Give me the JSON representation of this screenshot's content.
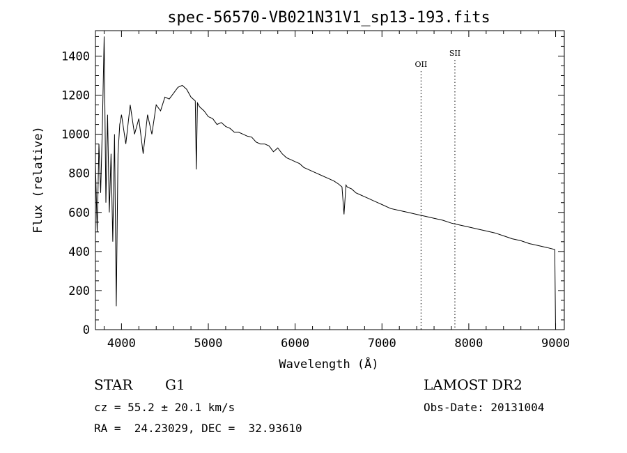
{
  "chart_data": {
    "type": "line",
    "title": "spec-56570-VB021N31V1_sp13-193.fits",
    "xlabel": "Wavelength (Å)",
    "ylabel": "Flux (relative)",
    "xlim": [
      3700,
      9100
    ],
    "ylim": [
      0,
      1530
    ],
    "x_ticks": [
      4000,
      5000,
      6000,
      7000,
      8000,
      9000
    ],
    "y_ticks": [
      0,
      200,
      400,
      600,
      800,
      1000,
      1200,
      1400
    ],
    "grid": false,
    "series": [
      {
        "x": [
          3700,
          3720,
          3740,
          3760,
          3780,
          3800,
          3820,
          3840,
          3860,
          3880,
          3900,
          3920,
          3940,
          3960,
          3980,
          4000,
          4050,
          4100,
          4150,
          4200,
          4250,
          4300,
          4350,
          4400,
          4450,
          4500,
          4550,
          4600,
          4650,
          4700,
          4750,
          4800,
          4850,
          4862,
          4875,
          4900,
          4950,
          5000,
          5050,
          5100,
          5150,
          5200,
          5250,
          5300,
          5350,
          5400,
          5450,
          5500,
          5550,
          5600,
          5650,
          5700,
          5750,
          5800,
          5850,
          5900,
          5950,
          6000,
          6050,
          6100,
          6150,
          6200,
          6250,
          6300,
          6350,
          6400,
          6450,
          6500,
          6540,
          6563,
          6585,
          6600,
          6650,
          6700,
          6750,
          6800,
          6850,
          6900,
          6950,
          7000,
          7100,
          7200,
          7300,
          7400,
          7500,
          7600,
          7700,
          7800,
          7900,
          8000,
          8100,
          8200,
          8300,
          8400,
          8500,
          8600,
          8700,
          8800,
          8900,
          8990,
          9000
        ],
        "y": [
          850,
          500,
          950,
          700,
          1050,
          1500,
          650,
          1100,
          600,
          900,
          450,
          1000,
          120,
          900,
          1050,
          1100,
          950,
          1150,
          1000,
          1080,
          900,
          1100,
          1000,
          1150,
          1120,
          1190,
          1180,
          1210,
          1240,
          1250,
          1230,
          1190,
          1170,
          820,
          1160,
          1140,
          1120,
          1090,
          1080,
          1050,
          1060,
          1040,
          1030,
          1010,
          1010,
          1000,
          990,
          985,
          960,
          950,
          950,
          940,
          910,
          930,
          900,
          880,
          870,
          860,
          850,
          830,
          820,
          810,
          800,
          790,
          780,
          770,
          760,
          745,
          730,
          590,
          740,
          730,
          720,
          700,
          690,
          680,
          670,
          660,
          650,
          640,
          620,
          610,
          600,
          590,
          580,
          570,
          560,
          545,
          535,
          525,
          515,
          505,
          495,
          480,
          465,
          455,
          440,
          430,
          420,
          410,
          0
        ]
      }
    ],
    "annotations": [
      {
        "text": "OII",
        "x": 7450
      },
      {
        "text": "SII",
        "x": 7840
      }
    ]
  },
  "info": {
    "class_label": "STAR",
    "subclass_label": "G1",
    "survey_label": "LAMOST DR2",
    "cz_line": "cz = 55.2 ± 20.1 km/s",
    "obs_date_line": "Obs-Date: 20131004",
    "radec_line": "RA =  24.23029, DEC =  32.93610"
  }
}
